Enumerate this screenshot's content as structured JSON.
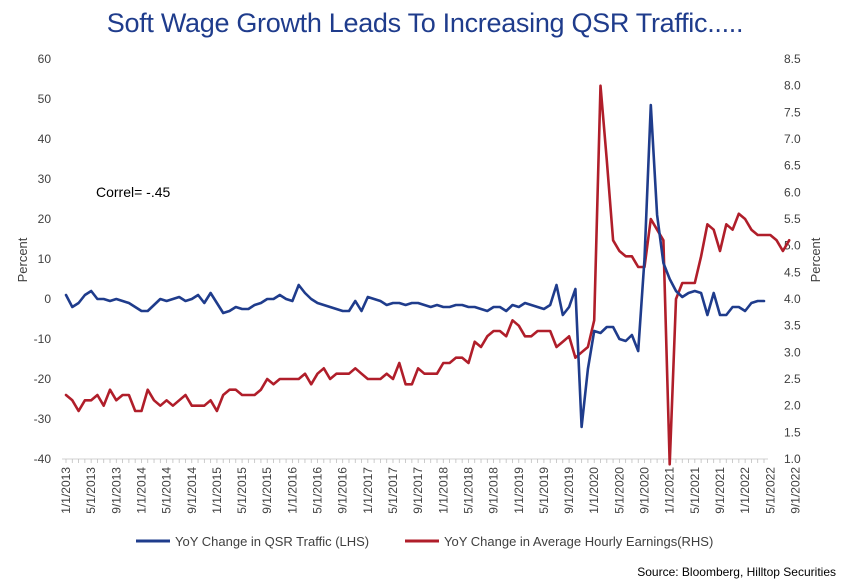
{
  "chart_data": {
    "type": "line",
    "title": "Soft Wage Growth Leads To Increasing QSR Traffic.....",
    "ylabel_left": "Percent",
    "ylabel_right": "Percent",
    "ylim_left": [
      -40,
      60
    ],
    "ylim_right": [
      1.0,
      8.5
    ],
    "yticks_left": [
      "60",
      "50",
      "40",
      "30",
      "20",
      "10",
      "0",
      "-10",
      "-20",
      "-30",
      "-40"
    ],
    "yticks_right": [
      "8.5",
      "8.0",
      "7.5",
      "7.0",
      "6.5",
      "6.0",
      "5.5",
      "5.0",
      "4.5",
      "4.0",
      "3.5",
      "3.0",
      "2.5",
      "2.0",
      "1.5",
      "1.0"
    ],
    "xticks": [
      "1/1/2013",
      "5/1/2013",
      "9/1/2013",
      "1/1/2014",
      "5/1/2014",
      "9/1/2014",
      "1/1/2015",
      "5/1/2015",
      "9/1/2015",
      "1/1/2016",
      "5/1/2016",
      "9/1/2016",
      "1/1/2017",
      "5/1/2017",
      "9/1/2017",
      "1/1/2018",
      "5/1/2018",
      "9/1/2018",
      "1/1/2019",
      "5/1/2019",
      "9/1/2019",
      "1/1/2020",
      "5/1/2020",
      "9/1/2020",
      "1/1/2021",
      "5/1/2021",
      "9/1/2021",
      "1/1/2022",
      "5/1/2022",
      "9/1/2022"
    ],
    "annotation": "Correl= -.45",
    "grid": false,
    "legend_position": "bottom",
    "source": "Source: Bloomberg, Hilltop Securities",
    "series": [
      {
        "name": "YoY Change in QSR Traffic (LHS)",
        "axis": "left",
        "color": "#1f3c8c",
        "x_start": "1/1/2013",
        "values": [
          1,
          -2,
          -1,
          1,
          2,
          0,
          0,
          -0.5,
          0,
          -0.5,
          -1,
          -2,
          -3,
          -3,
          -1.5,
          0,
          -0.5,
          0,
          0.5,
          -0.5,
          0,
          1,
          -1,
          1.5,
          -1,
          -3.5,
          -3,
          -2,
          -2.5,
          -2.5,
          -1.5,
          -1,
          0,
          0,
          1,
          0,
          -0.5,
          3.5,
          1.5,
          0,
          -1,
          -1.5,
          -2,
          -2.5,
          -3,
          -3,
          -0.5,
          -3,
          0.5,
          0,
          -0.5,
          -1.5,
          -1,
          -1,
          -1.5,
          -1,
          -1,
          -1.5,
          -2,
          -1.5,
          -2,
          -2,
          -1.5,
          -1.5,
          -2,
          -2,
          -2.5,
          -3,
          -2,
          -2,
          -3,
          -1.5,
          -2,
          -1,
          -1.5,
          -2,
          -2.5,
          -1.5,
          3.5,
          -4,
          -2,
          2.5,
          -32,
          -17.5,
          -8,
          -8.5,
          -7,
          -7,
          -10,
          -10.5,
          -9,
          -13,
          10,
          48.5,
          21,
          9,
          5,
          2,
          0.5,
          1.5,
          2,
          1.5,
          -4,
          1.5,
          -4,
          -4,
          -2,
          -2,
          -3,
          -1,
          -0.5,
          -0.5
        ]
      },
      {
        "name": "YoY Change in Average Hourly Earnings(RHS)",
        "axis": "right",
        "color": "#b01e2a",
        "x_start": "1/1/2013",
        "values": [
          2.2,
          2.1,
          1.9,
          2.1,
          2.1,
          2.2,
          2.0,
          2.3,
          2.1,
          2.2,
          2.2,
          1.9,
          1.9,
          2.3,
          2.1,
          2.0,
          2.1,
          2.0,
          2.1,
          2.2,
          2.0,
          2.0,
          2.0,
          2.1,
          1.9,
          2.2,
          2.3,
          2.3,
          2.2,
          2.2,
          2.2,
          2.3,
          2.5,
          2.4,
          2.5,
          2.5,
          2.5,
          2.5,
          2.6,
          2.4,
          2.6,
          2.7,
          2.5,
          2.6,
          2.6,
          2.6,
          2.7,
          2.6,
          2.5,
          2.5,
          2.5,
          2.6,
          2.5,
          2.8,
          2.4,
          2.4,
          2.7,
          2.6,
          2.6,
          2.6,
          2.8,
          2.8,
          2.9,
          2.9,
          2.8,
          3.2,
          3.1,
          3.3,
          3.4,
          3.4,
          3.3,
          3.6,
          3.5,
          3.3,
          3.3,
          3.4,
          3.4,
          3.4,
          3.1,
          3.2,
          3.3,
          2.9,
          3.0,
          3.1,
          3.6,
          8.0,
          6.6,
          5.1,
          4.9,
          4.8,
          4.8,
          4.6,
          4.6,
          5.5,
          5.3,
          5.1,
          0.9,
          4.0,
          4.3,
          4.3,
          4.3,
          4.8,
          5.4,
          5.3,
          4.9,
          5.4,
          5.3,
          5.6,
          5.5,
          5.3,
          5.2,
          5.2,
          5.2,
          5.1,
          4.9,
          5.1
        ]
      }
    ]
  }
}
